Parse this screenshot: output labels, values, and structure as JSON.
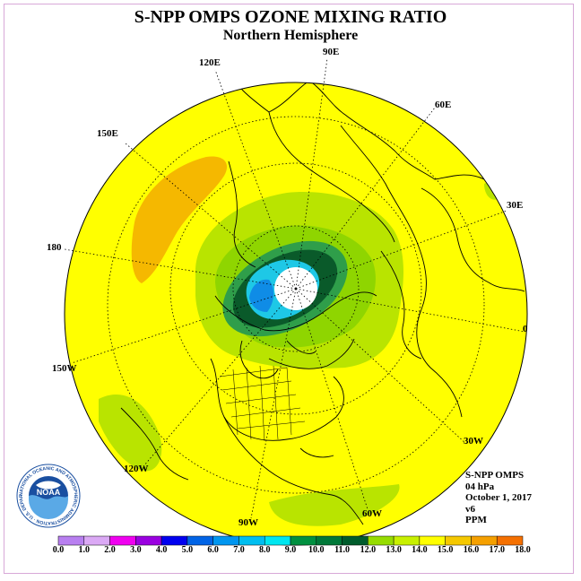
{
  "title": "S-NPP OMPS OZONE MIXING RATIO",
  "subtitle": "Northern Hemisphere",
  "longitude_labels": [
    "90E",
    "120E",
    "60E",
    "150E",
    "30E",
    "180",
    "0",
    "150W",
    "30W",
    "120W",
    "60W",
    "90W"
  ],
  "info": {
    "instrument": "S-NPP OMPS",
    "level": "04 hPa",
    "date": "October 1, 2017",
    "version": "v6",
    "units": "PPM"
  },
  "logo": {
    "text": "NOAA",
    "ring_text": "NATIONAL OCEANIC AND ATMOSPHERIC ADMINISTRATION · U.S. DEPARTMENT OF COMMERCE"
  },
  "colorbar": {
    "ticks": [
      "0.0",
      "1.0",
      "2.0",
      "3.0",
      "4.0",
      "5.0",
      "6.0",
      "7.0",
      "8.0",
      "9.0",
      "10.0",
      "11.0",
      "12.0",
      "13.0",
      "14.0",
      "15.0",
      "16.0",
      "17.0",
      "18.0"
    ],
    "colors": [
      "#b87ff0",
      "#dba9f5",
      "#f000f0",
      "#9a00e0",
      "#0000f0",
      "#0064e6",
      "#0096f0",
      "#00bef0",
      "#00e6f0",
      "#009040",
      "#007838",
      "#005c2c",
      "#96dc00",
      "#c8f000",
      "#ffff00",
      "#f5c800",
      "#f5a000",
      "#f57000",
      "#f00000",
      "#8b5a3c"
    ]
  },
  "map_colors": {
    "background": "#ffff00",
    "orange": "#f5b800",
    "light_green": "#b9e400",
    "green": "#8fd500",
    "mid_green": "#2f9e4a",
    "dark_green": "#0a5a2a",
    "cyan": "#1ec8e6",
    "blue": "#0f8ce6",
    "white": "#ffffff"
  }
}
